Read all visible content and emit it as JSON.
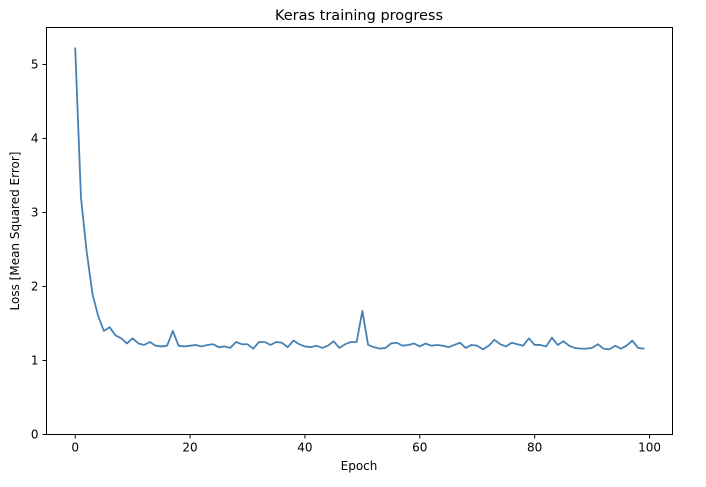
{
  "chart_data": {
    "type": "line",
    "title": "Keras training progress",
    "xlabel": "Epoch",
    "ylabel": "Loss [Mean Squared Error]",
    "xlim": [
      -5,
      104
    ],
    "ylim": [
      0,
      5.5
    ],
    "xticks": [
      0,
      20,
      40,
      60,
      80,
      100
    ],
    "yticks": [
      0,
      1,
      2,
      3,
      4,
      5
    ],
    "grid": false,
    "legend": "none",
    "series": [
      {
        "color": "#4682b4",
        "x": [
          0,
          1,
          2,
          3,
          4,
          5,
          6,
          7,
          8,
          9,
          10,
          11,
          12,
          13,
          14,
          15,
          16,
          17,
          18,
          19,
          20,
          21,
          22,
          23,
          24,
          25,
          26,
          27,
          28,
          29,
          30,
          31,
          32,
          33,
          34,
          35,
          36,
          37,
          38,
          39,
          40,
          41,
          42,
          43,
          44,
          45,
          46,
          47,
          48,
          49,
          50,
          51,
          52,
          53,
          54,
          55,
          56,
          57,
          58,
          59,
          60,
          61,
          62,
          63,
          64,
          65,
          66,
          67,
          68,
          69,
          70,
          71,
          72,
          73,
          74,
          75,
          76,
          77,
          78,
          79,
          80,
          81,
          82,
          83,
          84,
          85,
          86,
          87,
          88,
          89,
          90,
          91,
          92,
          93,
          94,
          95,
          96,
          97,
          98,
          99
        ],
        "y": [
          5.22,
          3.2,
          2.47,
          1.9,
          1.6,
          1.4,
          1.45,
          1.34,
          1.3,
          1.23,
          1.3,
          1.23,
          1.21,
          1.25,
          1.2,
          1.19,
          1.2,
          1.4,
          1.2,
          1.19,
          1.2,
          1.21,
          1.19,
          1.21,
          1.22,
          1.18,
          1.19,
          1.17,
          1.25,
          1.22,
          1.22,
          1.16,
          1.25,
          1.25,
          1.21,
          1.25,
          1.24,
          1.18,
          1.27,
          1.22,
          1.19,
          1.18,
          1.2,
          1.17,
          1.2,
          1.26,
          1.17,
          1.22,
          1.25,
          1.25,
          1.67,
          1.21,
          1.18,
          1.16,
          1.17,
          1.23,
          1.24,
          1.2,
          1.21,
          1.23,
          1.19,
          1.23,
          1.2,
          1.21,
          1.2,
          1.18,
          1.21,
          1.24,
          1.17,
          1.21,
          1.2,
          1.15,
          1.2,
          1.28,
          1.22,
          1.19,
          1.24,
          1.22,
          1.2,
          1.3,
          1.21,
          1.21,
          1.19,
          1.31,
          1.21,
          1.26,
          1.2,
          1.17,
          1.16,
          1.16,
          1.17,
          1.22,
          1.16,
          1.15,
          1.2,
          1.16,
          1.2,
          1.27,
          1.17,
          1.16
        ]
      }
    ]
  }
}
